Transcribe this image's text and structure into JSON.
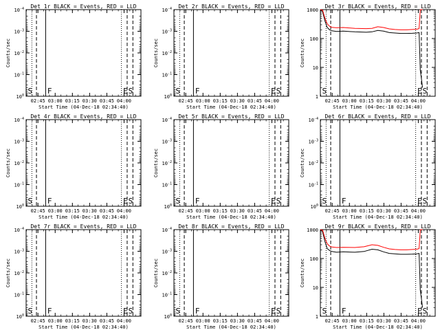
{
  "chart_data": [
    {
      "type": "line",
      "title": "Det 1r BLACK = Events, RED = LLD",
      "xlabel": "Start Time (04-Dec-18 02:34:40)",
      "ylabel": "Counts/sec",
      "x_ticks": [
        "02:45",
        "03:00",
        "03:15",
        "03:30",
        "03:45",
        "04:00"
      ],
      "x_tick_minutes": [
        10.3,
        25.3,
        40.3,
        55.3,
        70.3,
        85.3
      ],
      "xlim_minutes": [
        0,
        100
      ],
      "y_scale": "log",
      "ylim": [
        1,
        0.0001
      ],
      "y_ticks": [
        {
          "base": "10",
          "exp": "-4",
          "value": 0.0001
        },
        {
          "base": "10",
          "exp": "-3",
          "value": 0.001
        },
        {
          "base": "10",
          "exp": "-2",
          "value": 0.01
        },
        {
          "base": "10",
          "exp": "-1",
          "value": 0.1
        },
        {
          "base": "10",
          "exp": "0",
          "value": 1
        }
      ],
      "vlines": [
        {
          "minute": 5,
          "style": "dotted"
        },
        {
          "minute": 9,
          "style": "dashed"
        },
        {
          "minute": 17,
          "style": "solid"
        },
        {
          "minute": 83,
          "style": "dotted"
        },
        {
          "minute": 88,
          "style": "dashed"
        },
        {
          "minute": 93,
          "style": "dashed"
        }
      ],
      "markers": [
        {
          "label": "S",
          "minute": 1.5
        },
        {
          "label": "F",
          "minute": 18.5
        },
        {
          "label": "E",
          "minute": 84.5
        },
        {
          "label": "S",
          "minute": 89
        }
      ],
      "series": []
    },
    {
      "type": "line",
      "title": "Det 2r BLACK = Events, RED = LLD",
      "xlabel": "Start Time (04-Dec-18 02:34:40)",
      "ylabel": "Counts/sec",
      "x_ticks": [
        "02:45",
        "03:00",
        "03:15",
        "03:30",
        "03:45",
        "04:00"
      ],
      "x_tick_minutes": [
        10.3,
        25.3,
        40.3,
        55.3,
        70.3,
        85.3
      ],
      "xlim_minutes": [
        0,
        100
      ],
      "y_scale": "log",
      "ylim": [
        1,
        0.0001
      ],
      "y_ticks": [
        {
          "base": "10",
          "exp": "-4",
          "value": 0.0001
        },
        {
          "base": "10",
          "exp": "-3",
          "value": 0.001
        },
        {
          "base": "10",
          "exp": "-2",
          "value": 0.01
        },
        {
          "base": "10",
          "exp": "-1",
          "value": 0.1
        },
        {
          "base": "10",
          "exp": "0",
          "value": 1
        }
      ],
      "vlines": [
        {
          "minute": 5,
          "style": "dotted"
        },
        {
          "minute": 9,
          "style": "dashed"
        },
        {
          "minute": 17,
          "style": "solid"
        },
        {
          "minute": 83,
          "style": "dotted"
        },
        {
          "minute": 88,
          "style": "dashed"
        },
        {
          "minute": 93,
          "style": "dashed"
        }
      ],
      "markers": [
        {
          "label": "S",
          "minute": 1.5
        },
        {
          "label": "F",
          "minute": 18.5
        },
        {
          "label": "E",
          "minute": 84.5
        },
        {
          "label": "S",
          "minute": 89
        }
      ],
      "series": []
    },
    {
      "type": "line",
      "title": "Det 3r BLACK = Events, RED = LLD",
      "xlabel": "Start Time (04-Dec-18 02:34:40)",
      "ylabel": "Counts/sec",
      "x_ticks": [
        "02:45",
        "03:00",
        "03:15",
        "03:30",
        "03:45",
        "04:00"
      ],
      "x_tick_minutes": [
        10.3,
        25.3,
        40.3,
        55.3,
        70.3,
        85.3
      ],
      "xlim_minutes": [
        0,
        100
      ],
      "y_scale": "log",
      "ylim": [
        1,
        1000
      ],
      "y_ticks": [
        {
          "base": "1",
          "exp": "",
          "value": 1
        },
        {
          "base": "10",
          "exp": "",
          "value": 10
        },
        {
          "base": "100",
          "exp": "",
          "value": 100
        },
        {
          "base": "1000",
          "exp": "",
          "value": 1000
        }
      ],
      "vlines": [
        {
          "minute": 5,
          "style": "dotted"
        },
        {
          "minute": 9,
          "style": "dashed"
        },
        {
          "minute": 17,
          "style": "solid"
        },
        {
          "minute": 83,
          "style": "dotted"
        },
        {
          "minute": 88,
          "style": "dashed"
        },
        {
          "minute": 93,
          "style": "dashed"
        }
      ],
      "markers": [
        {
          "label": "S",
          "minute": 1.5
        },
        {
          "label": "E",
          "minute": 84.5
        },
        {
          "label": "S",
          "minute": 89
        }
      ],
      "series": [
        {
          "color": "#000000",
          "x": [
            0,
            2,
            4,
            6,
            8,
            10,
            14,
            20,
            30,
            40,
            45,
            50,
            55,
            60,
            65,
            70,
            75,
            80,
            84,
            86,
            87,
            88,
            89
          ],
          "y": [
            1000,
            850,
            400,
            240,
            200,
            185,
            175,
            180,
            170,
            165,
            170,
            190,
            180,
            160,
            155,
            150,
            150,
            152,
            155,
            160,
            8,
            4,
            2
          ]
        },
        {
          "color": "#ff0000",
          "x": [
            0,
            2,
            4,
            6,
            8,
            10,
            14,
            20,
            30,
            40,
            45,
            50,
            55,
            60,
            65,
            70,
            75,
            80,
            84,
            86,
            87,
            88,
            89
          ],
          "y": [
            1000,
            950,
            500,
            320,
            265,
            245,
            235,
            240,
            225,
            220,
            225,
            255,
            240,
            215,
            205,
            200,
            200,
            205,
            210,
            220,
            1000,
            1000,
            1000
          ]
        }
      ]
    },
    {
      "type": "line",
      "title": "Det 4r BLACK = Events, RED = LLD",
      "xlabel": "Start Time (04-Dec-18 02:34:40)",
      "ylabel": "Counts/sec",
      "x_ticks": [
        "02:45",
        "03:00",
        "03:15",
        "03:30",
        "03:45",
        "04:00"
      ],
      "x_tick_minutes": [
        10.3,
        25.3,
        40.3,
        55.3,
        70.3,
        85.3
      ],
      "xlim_minutes": [
        0,
        100
      ],
      "y_scale": "log",
      "ylim": [
        1,
        0.0001
      ],
      "y_ticks": [
        {
          "base": "10",
          "exp": "-4",
          "value": 0.0001
        },
        {
          "base": "10",
          "exp": "-3",
          "value": 0.001
        },
        {
          "base": "10",
          "exp": "-2",
          "value": 0.01
        },
        {
          "base": "10",
          "exp": "-1",
          "value": 0.1
        },
        {
          "base": "10",
          "exp": "0",
          "value": 1
        }
      ],
      "vlines": [
        {
          "minute": 5,
          "style": "dotted"
        },
        {
          "minute": 9,
          "style": "dashed"
        },
        {
          "minute": 17,
          "style": "solid"
        },
        {
          "minute": 83,
          "style": "dotted"
        },
        {
          "minute": 88,
          "style": "dashed"
        },
        {
          "minute": 93,
          "style": "dashed"
        }
      ],
      "markers": [
        {
          "label": "S",
          "minute": 1.5
        },
        {
          "label": "F",
          "minute": 18.5
        },
        {
          "label": "E",
          "minute": 84.5
        },
        {
          "label": "S",
          "minute": 89
        }
      ],
      "series": []
    },
    {
      "type": "line",
      "title": "Det 5r BLACK = Events, RED = LLD",
      "xlabel": "Start Time (04-Dec-18 02:34:40)",
      "ylabel": "Counts/sec",
      "x_ticks": [
        "02:45",
        "03:00",
        "03:15",
        "03:30",
        "03:45",
        "04:00"
      ],
      "x_tick_minutes": [
        10.3,
        25.3,
        40.3,
        55.3,
        70.3,
        85.3
      ],
      "xlim_minutes": [
        0,
        100
      ],
      "y_scale": "log",
      "ylim": [
        1,
        0.0001
      ],
      "y_ticks": [
        {
          "base": "10",
          "exp": "-4",
          "value": 0.0001
        },
        {
          "base": "10",
          "exp": "-3",
          "value": 0.001
        },
        {
          "base": "10",
          "exp": "-2",
          "value": 0.01
        },
        {
          "base": "10",
          "exp": "-1",
          "value": 0.1
        },
        {
          "base": "10",
          "exp": "0",
          "value": 1
        }
      ],
      "vlines": [
        {
          "minute": 5,
          "style": "dotted"
        },
        {
          "minute": 9,
          "style": "dashed"
        },
        {
          "minute": 17,
          "style": "solid"
        },
        {
          "minute": 83,
          "style": "dotted"
        },
        {
          "minute": 88,
          "style": "dashed"
        },
        {
          "minute": 93,
          "style": "dashed"
        }
      ],
      "markers": [
        {
          "label": "S",
          "minute": 1.5
        },
        {
          "label": "F",
          "minute": 18.5
        },
        {
          "label": "E",
          "minute": 84.5
        },
        {
          "label": "S",
          "minute": 89
        }
      ],
      "series": []
    },
    {
      "type": "line",
      "title": "Det 6r BLACK = Events, RED = LLD",
      "xlabel": "Start Time (04-Dec-18 02:34:40)",
      "ylabel": "Counts/sec",
      "x_ticks": [
        "02:45",
        "03:00",
        "03:15",
        "03:30",
        "03:45",
        "04:00"
      ],
      "x_tick_minutes": [
        10.3,
        25.3,
        40.3,
        55.3,
        70.3,
        85.3
      ],
      "xlim_minutes": [
        0,
        100
      ],
      "y_scale": "log",
      "ylim": [
        1,
        0.0001
      ],
      "y_ticks": [
        {
          "base": "10",
          "exp": "-4",
          "value": 0.0001
        },
        {
          "base": "10",
          "exp": "-3",
          "value": 0.001
        },
        {
          "base": "10",
          "exp": "-2",
          "value": 0.01
        },
        {
          "base": "10",
          "exp": "-1",
          "value": 0.1
        },
        {
          "base": "10",
          "exp": "0",
          "value": 1
        }
      ],
      "vlines": [
        {
          "minute": 5,
          "style": "dotted"
        },
        {
          "minute": 9,
          "style": "dashed"
        },
        {
          "minute": 17,
          "style": "solid"
        },
        {
          "minute": 83,
          "style": "dotted"
        },
        {
          "minute": 88,
          "style": "dashed"
        },
        {
          "minute": 93,
          "style": "dashed"
        }
      ],
      "markers": [
        {
          "label": "S",
          "minute": 1.5
        },
        {
          "label": "F",
          "minute": 18.5
        },
        {
          "label": "E",
          "minute": 84.5
        },
        {
          "label": "S",
          "minute": 89
        }
      ],
      "series": []
    },
    {
      "type": "line",
      "title": "Det 7r BLACK = Events, RED = LLD",
      "xlabel": "Start Time (04-Dec-18 02:34:40)",
      "ylabel": "Counts/sec",
      "x_ticks": [
        "02:45",
        "03:00",
        "03:15",
        "03:30",
        "03:45",
        "04:00"
      ],
      "x_tick_minutes": [
        10.3,
        25.3,
        40.3,
        55.3,
        70.3,
        85.3
      ],
      "xlim_minutes": [
        0,
        100
      ],
      "y_scale": "log",
      "ylim": [
        1,
        0.0001
      ],
      "y_ticks": [
        {
          "base": "10",
          "exp": "-4",
          "value": 0.0001
        },
        {
          "base": "10",
          "exp": "-3",
          "value": 0.001
        },
        {
          "base": "10",
          "exp": "-2",
          "value": 0.01
        },
        {
          "base": "10",
          "exp": "-1",
          "value": 0.1
        },
        {
          "base": "10",
          "exp": "0",
          "value": 1
        }
      ],
      "vlines": [
        {
          "minute": 5,
          "style": "dotted"
        },
        {
          "minute": 9,
          "style": "dashed"
        },
        {
          "minute": 17,
          "style": "solid"
        },
        {
          "minute": 83,
          "style": "dotted"
        },
        {
          "minute": 88,
          "style": "dashed"
        },
        {
          "minute": 93,
          "style": "dashed"
        }
      ],
      "markers": [
        {
          "label": "S",
          "minute": 1.5
        },
        {
          "label": "F",
          "minute": 18.5
        },
        {
          "label": "E",
          "minute": 84.5
        },
        {
          "label": "S",
          "minute": 89
        }
      ],
      "series": []
    },
    {
      "type": "line",
      "title": "Det 8r BLACK = Events, RED = LLD",
      "xlabel": "Start Time (04-Dec-18 02:34:40)",
      "ylabel": "Counts/sec",
      "x_ticks": [
        "02:45",
        "03:00",
        "03:15",
        "03:30",
        "03:45",
        "04:00"
      ],
      "x_tick_minutes": [
        10.3,
        25.3,
        40.3,
        55.3,
        70.3,
        85.3
      ],
      "xlim_minutes": [
        0,
        100
      ],
      "y_scale": "log",
      "ylim": [
        1,
        0.0001
      ],
      "y_ticks": [
        {
          "base": "10",
          "exp": "-4",
          "value": 0.0001
        },
        {
          "base": "10",
          "exp": "-3",
          "value": 0.001
        },
        {
          "base": "10",
          "exp": "-2",
          "value": 0.01
        },
        {
          "base": "10",
          "exp": "-1",
          "value": 0.1
        },
        {
          "base": "10",
          "exp": "0",
          "value": 1
        }
      ],
      "vlines": [
        {
          "minute": 5,
          "style": "dotted"
        },
        {
          "minute": 9,
          "style": "dashed"
        },
        {
          "minute": 17,
          "style": "solid"
        },
        {
          "minute": 83,
          "style": "dotted"
        },
        {
          "minute": 88,
          "style": "dashed"
        },
        {
          "minute": 93,
          "style": "dashed"
        }
      ],
      "markers": [
        {
          "label": "S",
          "minute": 1.5
        },
        {
          "label": "F",
          "minute": 18.5
        },
        {
          "label": "E",
          "minute": 84.5
        },
        {
          "label": "S",
          "minute": 89
        }
      ],
      "series": []
    },
    {
      "type": "line",
      "title": "Det 9r BLACK = Events, RED = LLD",
      "xlabel": "Start Time (04-Dec-18 02:34:40)",
      "ylabel": "Counts/sec",
      "x_ticks": [
        "02:45",
        "03:00",
        "03:15",
        "03:30",
        "03:45",
        "04:00"
      ],
      "x_tick_minutes": [
        10.3,
        25.3,
        40.3,
        55.3,
        70.3,
        85.3
      ],
      "xlim_minutes": [
        0,
        100
      ],
      "y_scale": "log",
      "ylim": [
        1,
        1000
      ],
      "y_ticks": [
        {
          "base": "1",
          "exp": "",
          "value": 1
        },
        {
          "base": "10",
          "exp": "",
          "value": 10
        },
        {
          "base": "100",
          "exp": "",
          "value": 100
        },
        {
          "base": "1000",
          "exp": "",
          "value": 1000
        }
      ],
      "vlines": [
        {
          "minute": 5,
          "style": "dotted"
        },
        {
          "minute": 9,
          "style": "dashed"
        },
        {
          "minute": 17,
          "style": "solid"
        },
        {
          "minute": 83,
          "style": "dotted"
        },
        {
          "minute": 88,
          "style": "dashed"
        },
        {
          "minute": 93,
          "style": "dashed"
        }
      ],
      "markers": [
        {
          "label": "S",
          "minute": 1.5
        },
        {
          "label": "F",
          "minute": 18.5
        },
        {
          "label": "E",
          "minute": 84.5
        },
        {
          "label": "S",
          "minute": 89
        }
      ],
      "series": [
        {
          "color": "#000000",
          "x": [
            0,
            2,
            4,
            6,
            8,
            10,
            14,
            20,
            30,
            38,
            45,
            50,
            55,
            60,
            65,
            70,
            75,
            80,
            84,
            86,
            87,
            88,
            89
          ],
          "y": [
            1000,
            850,
            380,
            220,
            190,
            175,
            165,
            170,
            165,
            175,
            210,
            200,
            170,
            150,
            145,
            140,
            140,
            142,
            145,
            150,
            8,
            4,
            2
          ]
        },
        {
          "color": "#ff0000",
          "x": [
            0,
            2,
            4,
            6,
            8,
            10,
            14,
            20,
            30,
            38,
            45,
            50,
            55,
            60,
            65,
            70,
            75,
            80,
            84,
            86,
            87,
            88,
            89
          ],
          "y": [
            1000,
            950,
            500,
            320,
            270,
            250,
            240,
            245,
            240,
            255,
            300,
            285,
            245,
            215,
            205,
            200,
            200,
            205,
            210,
            220,
            1000,
            1000,
            1000
          ]
        }
      ]
    }
  ]
}
